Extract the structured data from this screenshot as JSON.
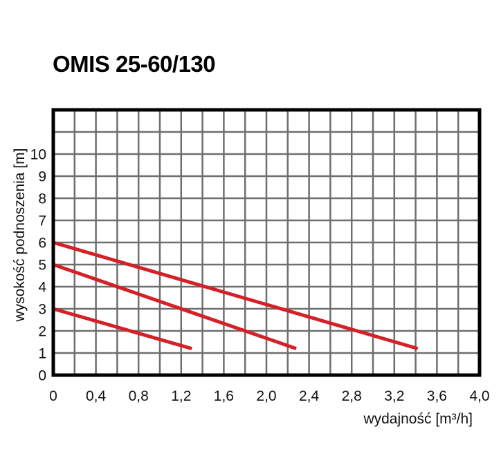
{
  "chart_data": {
    "type": "line",
    "title": "OMIS 25-60/130",
    "xlabel": "wydajność [m³/h]",
    "ylabel": "wysokość podnoszenia [m]",
    "xlim": [
      0,
      4.0
    ],
    "ylim": [
      0,
      12
    ],
    "x_ticks": [
      "0",
      "0,4",
      "0,8",
      "1,2",
      "1,6",
      "2,0",
      "2,4",
      "2,8",
      "3,2",
      "3,6",
      "4,0"
    ],
    "y_ticks": [
      "0",
      "1",
      "2",
      "3",
      "4",
      "5",
      "6",
      "7",
      "8",
      "9",
      "10"
    ],
    "grid": true,
    "colors": {
      "line": "#d42027",
      "grid": "#6e6e6e",
      "frame": "#000000"
    },
    "series": [
      {
        "x": [
          0,
          1.3
        ],
        "y": [
          3,
          1.2
        ]
      },
      {
        "x": [
          0,
          2.28
        ],
        "y": [
          5,
          1.2
        ]
      },
      {
        "x": [
          0,
          3.42
        ],
        "y": [
          6,
          1.2
        ]
      }
    ]
  }
}
